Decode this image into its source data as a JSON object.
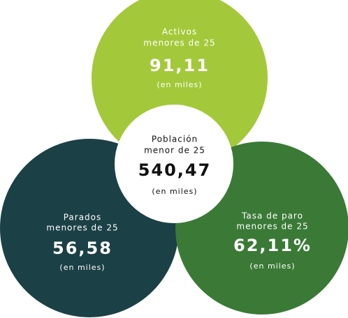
{
  "nodes": [
    {
      "lines": [
        "Activos",
        "menores de 25"
      ],
      "value": "91,11",
      "unit": "(en miles)"
    },
    {
      "lines": [
        "Parados",
        "menores de 25"
      ],
      "value": "56,58",
      "unit": "(en miles)"
    },
    {
      "lines": [
        "Tasa de paro",
        "menores de 25"
      ],
      "value": "62,11%",
      "unit": "(en miles)"
    },
    {
      "lines": [
        "Población",
        "menor de 25"
      ],
      "value": "540,47",
      "unit": "(en miles)"
    }
  ]
}
